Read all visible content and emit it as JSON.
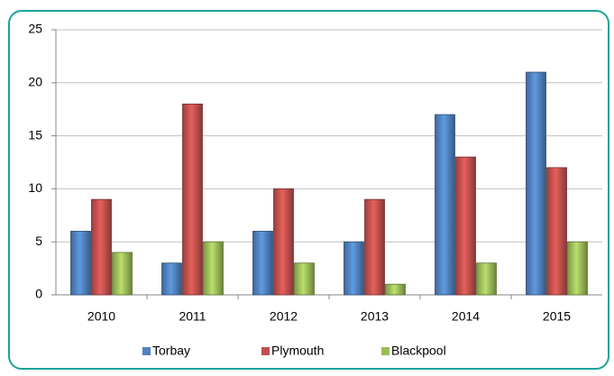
{
  "chart_data": {
    "type": "bar",
    "categories": [
      "2010",
      "2011",
      "2012",
      "2013",
      "2014",
      "2015"
    ],
    "series": [
      {
        "name": "Torbay",
        "color": "#4f81bd",
        "values": [
          6,
          3,
          6,
          5,
          17,
          21
        ]
      },
      {
        "name": "Plymouth",
        "color": "#c0504d",
        "values": [
          9,
          18,
          10,
          9,
          13,
          12
        ]
      },
      {
        "name": "Blackpool",
        "color": "#9bbb59",
        "values": [
          4,
          5,
          3,
          1,
          3,
          5
        ]
      }
    ],
    "ylim": [
      0,
      25
    ],
    "yticks": [
      0,
      5,
      10,
      15,
      20,
      25
    ],
    "grid": true,
    "legend": "bottom"
  }
}
